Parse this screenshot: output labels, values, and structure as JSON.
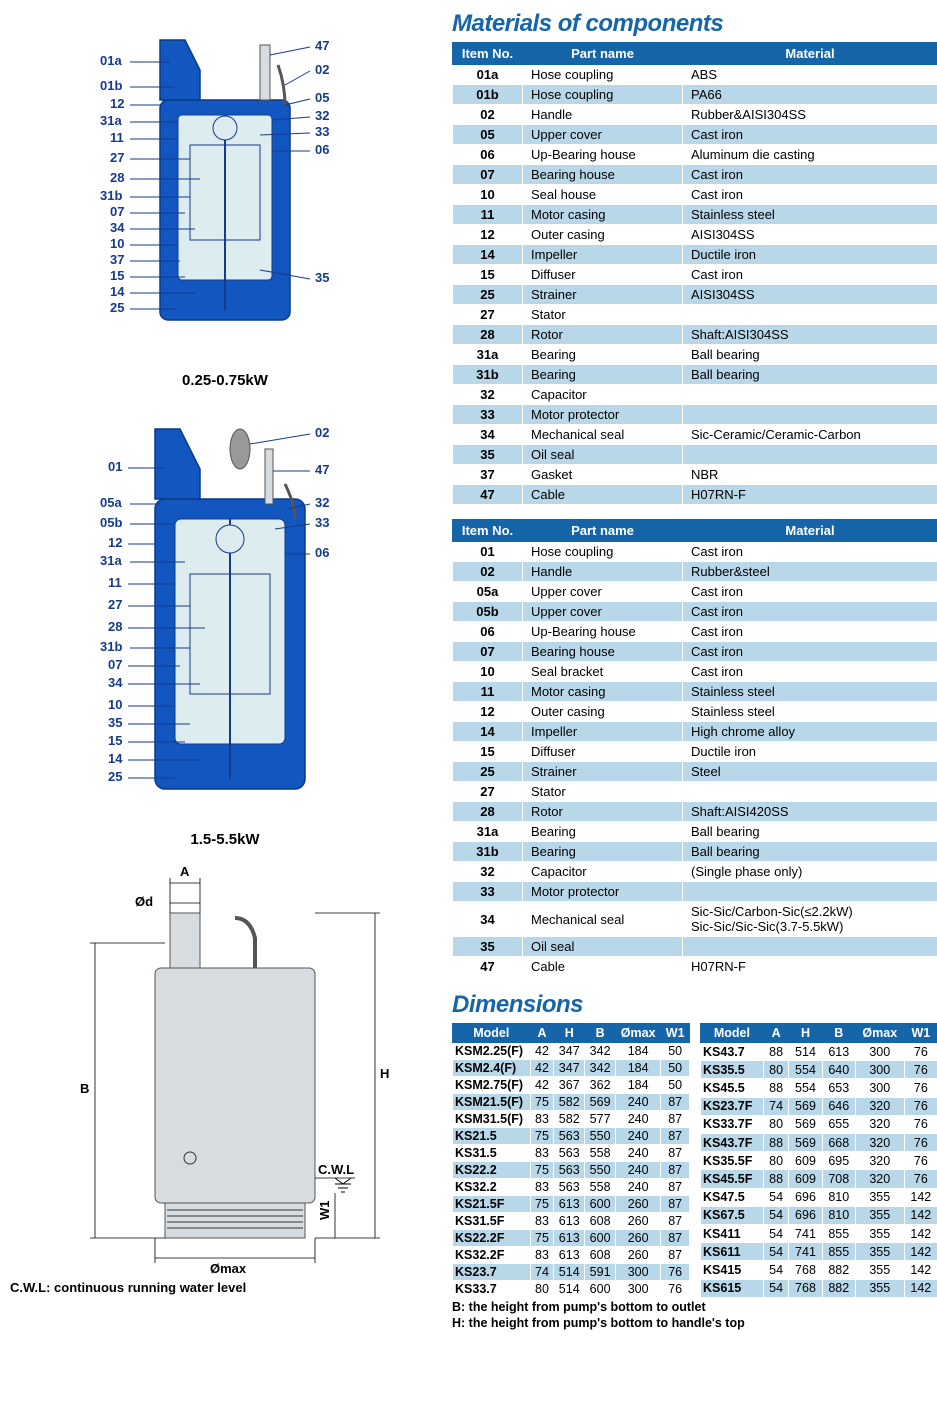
{
  "colors": {
    "brand_blue": "#1565a8",
    "row_blue": "#b8d8ea",
    "pump_blue": "#1157bf",
    "pump_stroke": "#0a3a88",
    "label_blue": "#163a8c",
    "inner_fill": "#dcecef",
    "metal_fill": "#d7dce0"
  },
  "typography": {
    "title_fontsize_pt": 24,
    "table_fontsize_pt": 13,
    "dim_table_fontsize_pt": 12.5,
    "caption_fontsize_pt": 15,
    "font_family": "Arial"
  },
  "titles": {
    "materials": "Materials of components",
    "dimensions": "Dimensions"
  },
  "diagrams": {
    "top": {
      "caption": "0.25-0.75kW",
      "labels_left": [
        "01a",
        "01b",
        "12",
        "31a",
        "11",
        "27",
        "28",
        "31b",
        "07",
        "34",
        "10",
        "37",
        "15",
        "14",
        "25"
      ],
      "labels_right": [
        "47",
        "02",
        "05",
        "32",
        "33",
        "06",
        "35"
      ]
    },
    "middle": {
      "caption": "1.5-5.5kW",
      "labels_left": [
        "01",
        "05a",
        "05b",
        "12",
        "31a",
        "11",
        "27",
        "28",
        "31b",
        "07",
        "34",
        "10",
        "35",
        "15",
        "14",
        "25"
      ],
      "labels_right": [
        "02",
        "47",
        "32",
        "33",
        "06"
      ]
    },
    "bottom": {
      "caption": "C.W.L: continuous running water level",
      "dim_labels": [
        "A",
        "Ød",
        "B",
        "H",
        "C.W.L",
        "W1",
        "Ømax"
      ]
    }
  },
  "materials_table_1": {
    "headers": [
      "Item No.",
      "Part name",
      "Material"
    ],
    "rows": [
      [
        "01a",
        "Hose coupling",
        "ABS"
      ],
      [
        "01b",
        "Hose coupling",
        "PA66"
      ],
      [
        "02",
        "Handle",
        "Rubber&AISI304SS"
      ],
      [
        "05",
        "Upper cover",
        "Cast iron"
      ],
      [
        "06",
        "Up-Bearing house",
        "Aluminum die casting"
      ],
      [
        "07",
        "Bearing house",
        "Cast iron"
      ],
      [
        "10",
        "Seal house",
        "Cast iron"
      ],
      [
        "11",
        "Motor casing",
        "Stainless steel"
      ],
      [
        "12",
        "Outer casing",
        "AISI304SS"
      ],
      [
        "14",
        "Impeller",
        "Ductile iron"
      ],
      [
        "15",
        "Diffuser",
        "Cast iron"
      ],
      [
        "25",
        "Strainer",
        "AISI304SS"
      ],
      [
        "27",
        "Stator",
        ""
      ],
      [
        "28",
        "Rotor",
        "Shaft:AISI304SS"
      ],
      [
        "31a",
        "Bearing",
        "Ball bearing"
      ],
      [
        "31b",
        "Bearing",
        "Ball bearing"
      ],
      [
        "32",
        "Capacitor",
        ""
      ],
      [
        "33",
        "Motor protector",
        ""
      ],
      [
        "34",
        "Mechanical seal",
        "Sic-Ceramic/Ceramic-Carbon"
      ],
      [
        "35",
        "Oil seal",
        ""
      ],
      [
        "37",
        "Gasket",
        "NBR"
      ],
      [
        "47",
        "Cable",
        "H07RN-F"
      ]
    ]
  },
  "materials_table_2": {
    "headers": [
      "Item No.",
      "Part name",
      "Material"
    ],
    "rows": [
      [
        "01",
        "Hose coupling",
        "Cast iron"
      ],
      [
        "02",
        "Handle",
        "Rubber&steel"
      ],
      [
        "05a",
        "Upper cover",
        "Cast iron"
      ],
      [
        "05b",
        "Upper cover",
        "Cast iron"
      ],
      [
        "06",
        "Up-Bearing house",
        "Cast iron"
      ],
      [
        "07",
        "Bearing house",
        "Cast iron"
      ],
      [
        "10",
        "Seal bracket",
        "Cast iron"
      ],
      [
        "11",
        "Motor casing",
        "Stainless steel"
      ],
      [
        "12",
        "Outer casing",
        "Stainless steel"
      ],
      [
        "14",
        "Impeller",
        "High chrome alloy"
      ],
      [
        "15",
        "Diffuser",
        "Ductile iron"
      ],
      [
        "25",
        "Strainer",
        "Steel"
      ],
      [
        "27",
        "Stator",
        ""
      ],
      [
        "28",
        "Rotor",
        "Shaft:AISI420SS"
      ],
      [
        "31a",
        "Bearing",
        "Ball bearing"
      ],
      [
        "31b",
        "Bearing",
        "Ball bearing"
      ],
      [
        "32",
        "Capacitor",
        "(Single phase only)"
      ],
      [
        "33",
        "Motor protector",
        ""
      ],
      [
        "34",
        "Mechanical seal",
        "Sic-Sic/Carbon-Sic(≤2.2kW)\nSic-Sic/Sic-Sic(3.7-5.5kW)"
      ],
      [
        "35",
        "Oil seal",
        ""
      ],
      [
        "47",
        "Cable",
        "H07RN-F"
      ]
    ]
  },
  "dimensions_table": {
    "headers": [
      "Model",
      "A",
      "H",
      "B",
      "Ømax",
      "W1"
    ],
    "left_rows": [
      [
        "KSM2.25(F)",
        "42",
        "347",
        "342",
        "184",
        "50"
      ],
      [
        "KSM2.4(F)",
        "42",
        "347",
        "342",
        "184",
        "50"
      ],
      [
        "KSM2.75(F)",
        "42",
        "367",
        "362",
        "184",
        "50"
      ],
      [
        "KSM21.5(F)",
        "75",
        "582",
        "569",
        "240",
        "87"
      ],
      [
        "KSM31.5(F)",
        "83",
        "582",
        "577",
        "240",
        "87"
      ],
      [
        "KS21.5",
        "75",
        "563",
        "550",
        "240",
        "87"
      ],
      [
        "KS31.5",
        "83",
        "563",
        "558",
        "240",
        "87"
      ],
      [
        "KS22.2",
        "75",
        "563",
        "550",
        "240",
        "87"
      ],
      [
        "KS32.2",
        "83",
        "563",
        "558",
        "240",
        "87"
      ],
      [
        "KS21.5F",
        "75",
        "613",
        "600",
        "260",
        "87"
      ],
      [
        "KS31.5F",
        "83",
        "613",
        "608",
        "260",
        "87"
      ],
      [
        "KS22.2F",
        "75",
        "613",
        "600",
        "260",
        "87"
      ],
      [
        "KS32.2F",
        "83",
        "613",
        "608",
        "260",
        "87"
      ],
      [
        "KS23.7",
        "74",
        "514",
        "591",
        "300",
        "76"
      ],
      [
        "KS33.7",
        "80",
        "514",
        "600",
        "300",
        "76"
      ]
    ],
    "right_rows": [
      [
        "KS43.7",
        "88",
        "514",
        "613",
        "300",
        "76"
      ],
      [
        "KS35.5",
        "80",
        "554",
        "640",
        "300",
        "76"
      ],
      [
        "KS45.5",
        "88",
        "554",
        "653",
        "300",
        "76"
      ],
      [
        "KS23.7F",
        "74",
        "569",
        "646",
        "320",
        "76"
      ],
      [
        "KS33.7F",
        "80",
        "569",
        "655",
        "320",
        "76"
      ],
      [
        "KS43.7F",
        "88",
        "569",
        "668",
        "320",
        "76"
      ],
      [
        "KS35.5F",
        "80",
        "609",
        "695",
        "320",
        "76"
      ],
      [
        "KS45.5F",
        "88",
        "609",
        "708",
        "320",
        "76"
      ],
      [
        "KS47.5",
        "54",
        "696",
        "810",
        "355",
        "142"
      ],
      [
        "KS67.5",
        "54",
        "696",
        "810",
        "355",
        "142"
      ],
      [
        "KS411",
        "54",
        "741",
        "855",
        "355",
        "142"
      ],
      [
        "KS611",
        "54",
        "741",
        "855",
        "355",
        "142"
      ],
      [
        "KS415",
        "54",
        "768",
        "882",
        "355",
        "142"
      ],
      [
        "KS615",
        "54",
        "768",
        "882",
        "355",
        "142"
      ]
    ]
  },
  "footnotes": {
    "b": "B: the height from pump's bottom to outlet",
    "h": "H: the height from pump's bottom to handle's top"
  }
}
